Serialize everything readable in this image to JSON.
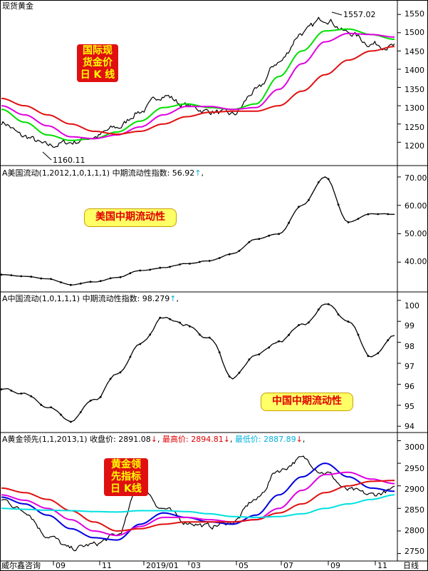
{
  "panel1": {
    "title": "现货黄金",
    "badge_lines": [
      "国际现",
      "货金价",
      "日 K 线"
    ],
    "high_label": "1557.02",
    "low_label": "1160.11",
    "yticks": [
      "1550",
      "1500",
      "1450",
      "1400",
      "1350",
      "1300",
      "1250",
      "1200"
    ]
  },
  "panel2": {
    "header": "A美国流动(1,2012,1,0,1,1,1)  中期流动性指数: 56.92",
    "arrow": "↑",
    "header_tail": ",",
    "pill": "美国中期流动性",
    "yticks": [
      "70.00",
      "60.00",
      "50.00",
      "40.00"
    ]
  },
  "panel3": {
    "header": "A中国流动(1,0,1,1,1)  中期流动性指数: 98.279",
    "arrow": "↑",
    "header_tail": ",",
    "pill": "中国中期流动性",
    "yticks": [
      "100",
      "99",
      "98",
      "97",
      "96",
      "95",
      "94"
    ]
  },
  "panel4": {
    "header_name": "A黄金领先(1,1,2013,1)",
    "close_label": "收盘价: 2891.08",
    "high_label": "最高价: 2894.81",
    "low_label": "最低价: 2887.89",
    "down_arrow": "↓",
    "sep": ",",
    "badge_lines": [
      "黄金领",
      "先指标",
      "日 K线"
    ],
    "yticks": [
      "3000",
      "2950",
      "2900",
      "2850",
      "2800",
      "2750"
    ]
  },
  "footer": {
    "source": "威尔鑫咨询",
    "xticks": [
      "09",
      "11",
      "2019/01",
      "03",
      "05",
      "07",
      "09",
      "11"
    ],
    "period": "日线"
  },
  "colors": {
    "red_ma": "#e01010",
    "magenta_ma": "#e000e0",
    "green_ma": "#00e000",
    "blue_ma": "#0000e0",
    "cyan_ma": "#00e0e0",
    "price": "#000000",
    "badge_bg": "#e01010",
    "badge_text": "#ffff00",
    "pill_bg": "#ffff66",
    "pill_text": "#e00000"
  },
  "chart_data": [
    {
      "type": "line",
      "title": "现货黄金",
      "ylim": [
        1140,
        1570
      ],
      "x": [
        "2018/07",
        "2018/08",
        "2018/09",
        "2018/10",
        "2018/11",
        "2018/12",
        "2019/01",
        "2019/02",
        "2019/03",
        "2019/04",
        "2019/05",
        "2019/06",
        "2019/07",
        "2019/08",
        "2019/09",
        "2019/10",
        "2019/11",
        "2019/12"
      ],
      "series": [
        {
          "values": [
            1255,
            1215,
            1190,
            1200,
            1215,
            1240,
            1285,
            1330,
            1300,
            1285,
            1275,
            1340,
            1420,
            1500,
            1540,
            1500,
            1470,
            1462
          ]
        },
        {
          "values": [
            1290,
            1255,
            1220,
            1205,
            1210,
            1228,
            1258,
            1295,
            1305,
            1295,
            1290,
            1305,
            1380,
            1450,
            1505,
            1510,
            1495,
            1482
          ]
        },
        {
          "values": [
            1300,
            1275,
            1245,
            1215,
            1210,
            1220,
            1242,
            1275,
            1298,
            1298,
            1290,
            1295,
            1345,
            1415,
            1475,
            1498,
            1495,
            1488
          ]
        },
        {
          "values": [
            1320,
            1300,
            1275,
            1250,
            1230,
            1222,
            1230,
            1250,
            1270,
            1282,
            1285,
            1285,
            1300,
            1340,
            1385,
            1425,
            1450,
            1462
          ]
        }
      ]
    },
    {
      "type": "line",
      "ylim": [
        30,
        73
      ],
      "x": [
        "2018/07",
        "2018/08",
        "2018/09",
        "2018/10",
        "2018/11",
        "2018/12",
        "2019/01",
        "2019/02",
        "2019/03",
        "2019/04",
        "2019/05",
        "2019/06",
        "2019/07",
        "2019/08",
        "2019/09",
        "2019/10",
        "2019/11",
        "2019/12"
      ],
      "series": [
        {
          "values": [
            35.5,
            35.0,
            34.0,
            32.0,
            33.0,
            34.5,
            37.0,
            38.0,
            39.5,
            40.5,
            43.0,
            48.0,
            50.0,
            60.0,
            70.0,
            54.0,
            57.0,
            56.92
          ]
        }
      ]
    },
    {
      "type": "line",
      "ylim": [
        93.7,
        100.3
      ],
      "x": [
        "2018/07",
        "2018/08",
        "2018/09",
        "2018/10",
        "2018/11",
        "2018/12",
        "2019/01",
        "2019/02",
        "2019/03",
        "2019/04",
        "2019/05",
        "2019/06",
        "2019/07",
        "2019/08",
        "2019/09",
        "2019/10",
        "2019/11",
        "2019/12"
      ],
      "series": [
        {
          "values": [
            95.7,
            95.6,
            95.0,
            94.2,
            95.2,
            96.5,
            98.0,
            99.2,
            98.8,
            98.2,
            96.3,
            97.3,
            98.0,
            98.8,
            99.8,
            99.0,
            97.3,
            98.279
          ]
        }
      ]
    },
    {
      "type": "line",
      "title": "A黄金领先(1,1,2013,1)",
      "ylim": [
        2735,
        3015
      ],
      "x": [
        "2018/07",
        "2018/08",
        "2018/09",
        "2018/10",
        "2018/11",
        "2018/12",
        "2019/01",
        "2019/02",
        "2019/03",
        "2019/04",
        "2019/05",
        "2019/06",
        "2019/07",
        "2019/08",
        "2019/09",
        "2019/10",
        "2019/11",
        "2019/12"
      ],
      "series": [
        {
          "values": [
            2870,
            2845,
            2790,
            2760,
            2770,
            2790,
            2900,
            2850,
            2820,
            2810,
            2820,
            2870,
            2935,
            2960,
            2930,
            2890,
            2880,
            2891.08
          ]
        },
        {
          "values": [
            2875,
            2860,
            2835,
            2805,
            2785,
            2780,
            2815,
            2840,
            2830,
            2820,
            2815,
            2835,
            2880,
            2920,
            2950,
            2920,
            2895,
            2888
          ]
        },
        {
          "values": [
            2880,
            2868,
            2850,
            2825,
            2800,
            2790,
            2810,
            2830,
            2830,
            2825,
            2820,
            2825,
            2850,
            2890,
            2925,
            2930,
            2915,
            2905
          ]
        },
        {
          "values": [
            2895,
            2885,
            2870,
            2845,
            2820,
            2800,
            2805,
            2815,
            2820,
            2820,
            2820,
            2825,
            2840,
            2860,
            2885,
            2900,
            2910,
            2912
          ]
        },
        {
          "values": [
            2850,
            2848,
            2846,
            2845,
            2843,
            2842,
            2845,
            2845,
            2843,
            2838,
            2832,
            2830,
            2832,
            2838,
            2850,
            2860,
            2870,
            2880
          ]
        }
      ]
    }
  ]
}
